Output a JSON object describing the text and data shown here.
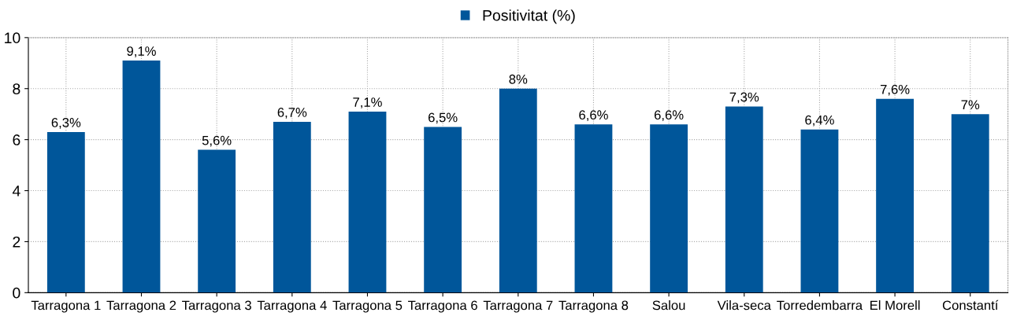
{
  "chart_data": {
    "type": "bar",
    "categories": [
      "Tarragona 1",
      "Tarragona 2",
      "Tarragona 3",
      "Tarragona 4",
      "Tarragona 5",
      "Tarragona 6",
      "Tarragona 7",
      "Tarragona 8",
      "Salou",
      "Vila-seca",
      "Torredembarra",
      "El Morell",
      "Constantí"
    ],
    "series": [
      {
        "name": "Positivitat (%)",
        "color": "#00569a",
        "values": [
          6.3,
          9.1,
          5.6,
          6.7,
          7.1,
          6.5,
          8,
          6.6,
          6.6,
          7.3,
          6.4,
          7.6,
          7
        ],
        "value_labels": [
          "6,3%",
          "9,1%",
          "5,6%",
          "6,7%",
          "7,1%",
          "6,5%",
          "8%",
          "6,6%",
          "6,6%",
          "7,3%",
          "6,4%",
          "7,6%",
          "7%"
        ]
      }
    ],
    "ylim": [
      0,
      10
    ],
    "yticks": [
      0,
      2,
      4,
      6,
      8,
      10
    ],
    "grid": true,
    "legend": "top"
  }
}
